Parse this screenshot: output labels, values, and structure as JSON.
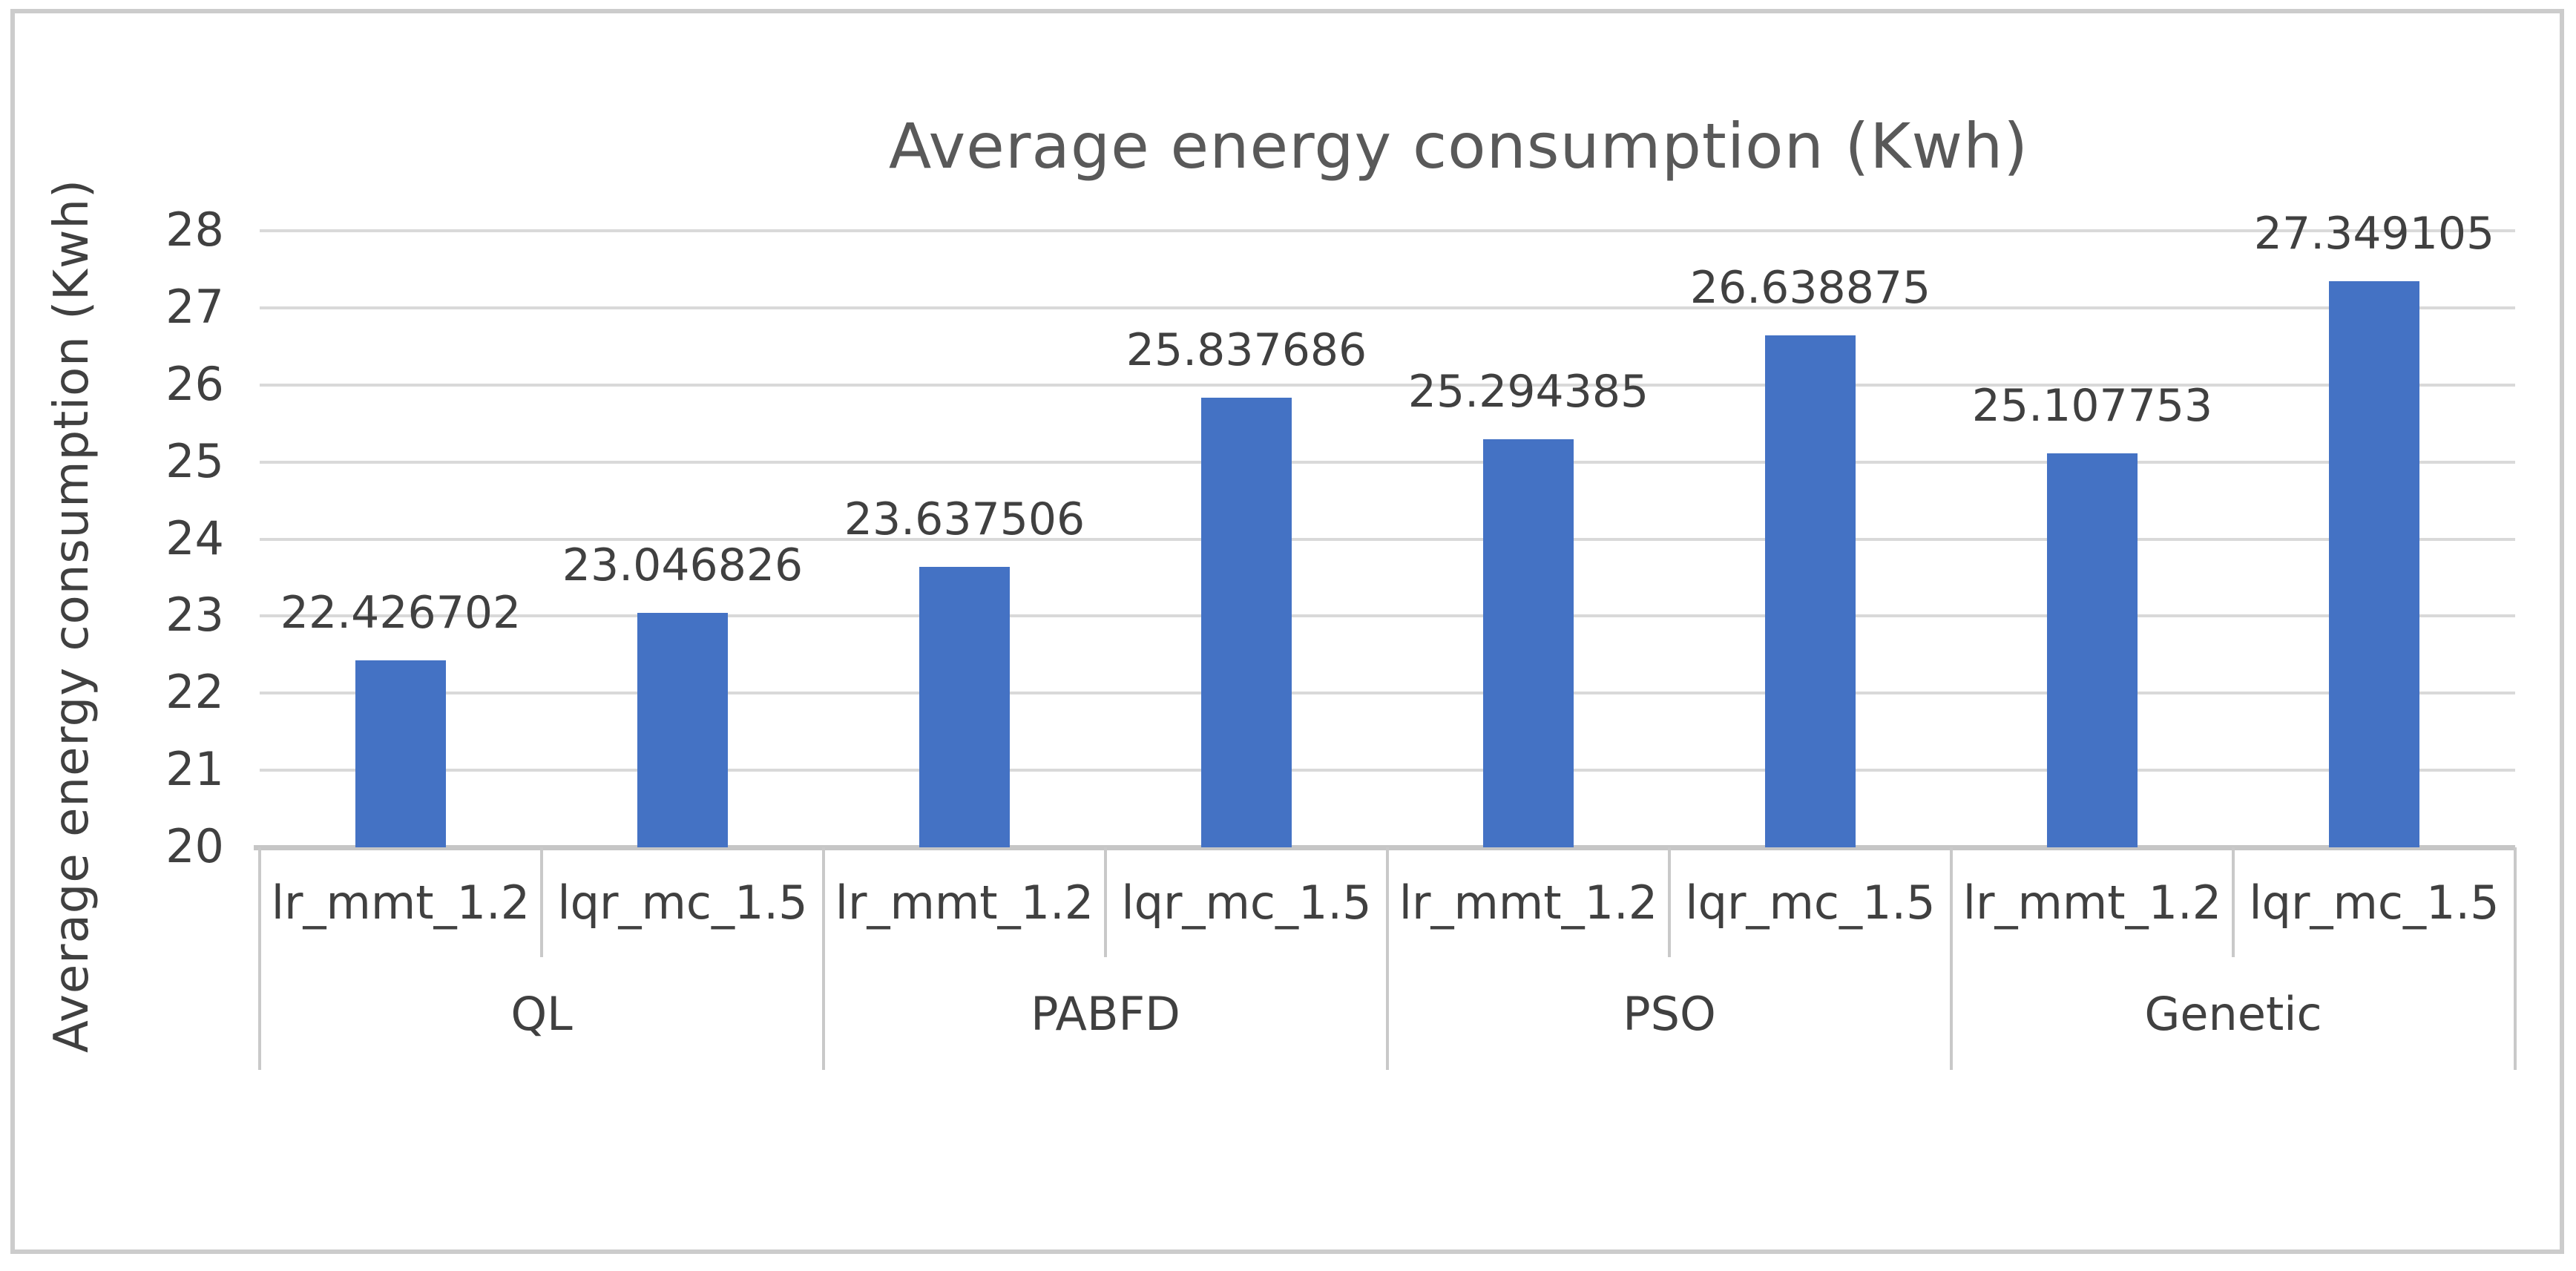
{
  "chart_data": {
    "type": "bar",
    "title": "Average energy consumption (Kwh)",
    "ylabel": "Average energy consumption (Kwh)",
    "xlabel": "",
    "ylim": [
      20,
      28
    ],
    "yticks": [
      20,
      21,
      22,
      23,
      24,
      25,
      26,
      27,
      28
    ],
    "grid": true,
    "legend_position": "none",
    "bar_color": "#4472c4",
    "groups": [
      "QL",
      "PABFD",
      "PSO",
      "Genetic"
    ],
    "subcategories_per_group": [
      "lr_mmt_1.2",
      "lqr_mc_1.5"
    ],
    "categories": [
      "lr_mmt_1.2",
      "lqr_mc_1.5",
      "lr_mmt_1.2",
      "lqr_mc_1.5",
      "lr_mmt_1.2",
      "lqr_mc_1.5",
      "lr_mmt_1.2",
      "lqr_mc_1.5"
    ],
    "series": [
      {
        "name": "Average energy consumption (Kwh)",
        "values": [
          22.426702,
          23.046826,
          23.637506,
          25.837686,
          25.294385,
          26.638875,
          25.107753,
          27.349105
        ]
      }
    ],
    "data_labels": [
      "22.426702",
      "23.046826",
      "23.637506",
      "25.837686",
      "25.294385",
      "26.638875",
      "25.107753",
      "27.349105"
    ]
  },
  "colors": {
    "bar": "#4472c4",
    "gridline": "#d9d9d9",
    "axis_line": "#c6c6c6",
    "separator": "#c9c9c9",
    "tick_text": "#404040",
    "title_text": "#595959",
    "frame_border": "#cccccc"
  }
}
